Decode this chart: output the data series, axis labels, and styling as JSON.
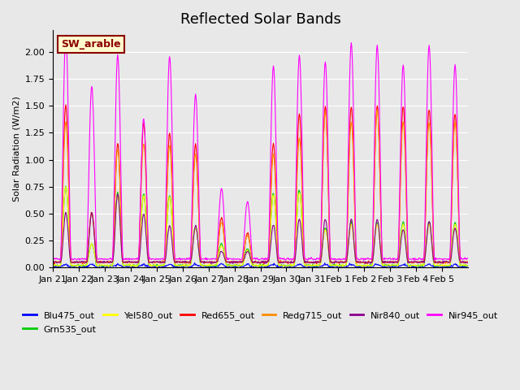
{
  "title": "Reflected Solar Bands",
  "ylabel": "Solar Radiation (W/m2)",
  "xlabel": "",
  "annotation_text": "SW_arable",
  "annotation_color": "#8B0000",
  "annotation_bg": "#FFFACD",
  "annotation_border": "#8B0000",
  "plot_bg": "#E8E8E8",
  "ylim": [
    0,
    2.2
  ],
  "series": [
    {
      "name": "Blu475_out",
      "color": "#0000FF"
    },
    {
      "name": "Grn535_out",
      "color": "#00CC00"
    },
    {
      "name": "Yel580_out",
      "color": "#FFFF00"
    },
    {
      "name": "Red655_out",
      "color": "#FF0000"
    },
    {
      "name": "Redg715_out",
      "color": "#FF8C00"
    },
    {
      "name": "Nir840_out",
      "color": "#8B008B"
    },
    {
      "name": "Nir945_out",
      "color": "#FF00FF"
    }
  ],
  "xtick_labels": [
    "Jan 21",
    "Jan 22",
    "Jan 23",
    "Jan 24",
    "Jan 25",
    "Jan 26",
    "Jan 27",
    "Jan 28",
    "Jan 29",
    "Jan 30",
    "Jan 31",
    "Feb 1",
    "Feb 2",
    "Feb 3",
    "Feb 4",
    "Feb 5"
  ],
  "xtick_positions": [
    0,
    1,
    2,
    3,
    4,
    5,
    6,
    7,
    8,
    9,
    10,
    11,
    12,
    13,
    14,
    15
  ],
  "grid_color": "white",
  "title_fontsize": 13,
  "tick_fontsize": 8,
  "legend_fontsize": 8,
  "nir945_peaks": [
    2.08,
    1.6,
    1.89,
    1.3,
    1.88,
    1.53,
    0.65,
    0.53,
    1.79,
    1.89,
    1.83,
    2.0,
    1.98,
    1.8,
    1.98,
    1.8
  ],
  "nir840_peaks": [
    0.46,
    0.46,
    0.63,
    0.45,
    0.34,
    0.34,
    0.1,
    0.1,
    0.35,
    0.4,
    0.4,
    0.4,
    0.4,
    0.3,
    0.38,
    0.32
  ],
  "red655_peaks": [
    1.46,
    0.46,
    1.1,
    1.29,
    1.2,
    1.09,
    0.41,
    0.27,
    1.1,
    1.37,
    1.45,
    1.44,
    1.45,
    1.45,
    1.42,
    1.38
  ],
  "redg715_peaks": [
    1.3,
    0.45,
    1.05,
    1.1,
    1.08,
    1.0,
    0.37,
    0.25,
    1.0,
    1.15,
    1.4,
    1.3,
    1.42,
    1.3,
    1.3,
    1.3
  ],
  "grn535_peaks": [
    0.73,
    0.2,
    0.67,
    0.66,
    0.65,
    0.35,
    0.2,
    0.15,
    0.67,
    0.7,
    0.35,
    0.4,
    0.4,
    0.4,
    0.4,
    0.4
  ],
  "yel580_peaks": [
    0.73,
    0.2,
    0.65,
    0.65,
    0.63,
    0.35,
    0.18,
    0.14,
    0.65,
    0.68,
    0.33,
    0.38,
    0.38,
    0.38,
    0.38,
    0.38
  ],
  "blu475_peaks": [
    0.02,
    0.02,
    0.02,
    0.02,
    0.02,
    0.02,
    0.02,
    0.02,
    0.02,
    0.02,
    0.02,
    0.02,
    0.02,
    0.02,
    0.02,
    0.02
  ],
  "bases": {
    "nir945": 0.08,
    "nir840": 0.05,
    "red655": 0.05,
    "redg715": 0.05,
    "grn535": 0.02,
    "yel580": 0.02,
    "blu475": 0.01
  }
}
